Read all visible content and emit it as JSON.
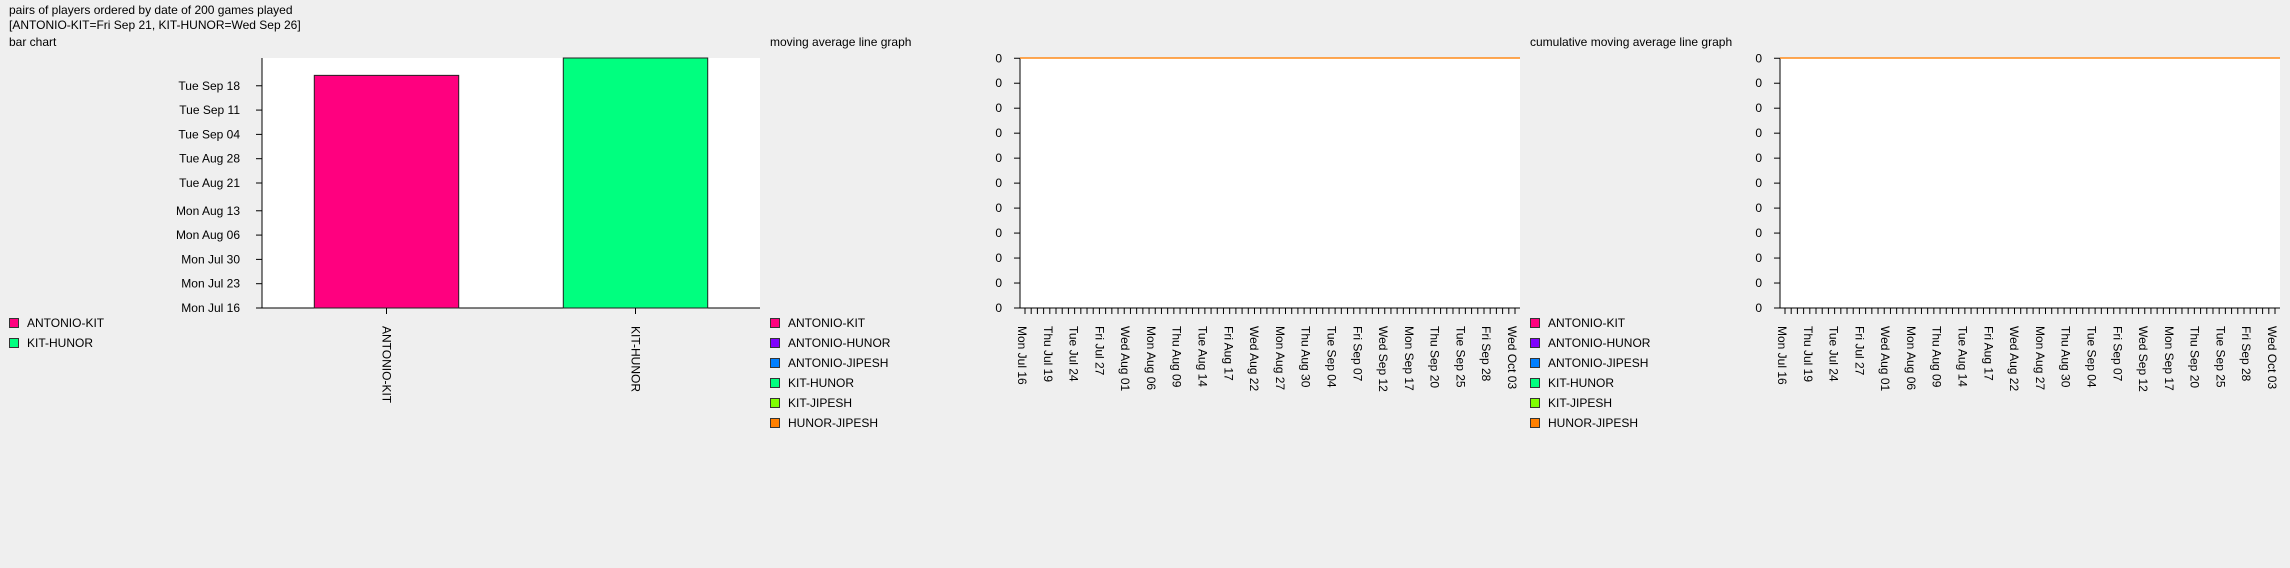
{
  "header": {
    "line1": "pairs of players ordered by date of 200 games played",
    "line2": "[ANTONIO-KIT=Fri Sep 21, KIT-HUNOR=Wed Sep 26]"
  },
  "chart_data": [
    {
      "type": "bar",
      "title": "bar chart",
      "categories": [
        "ANTONIO-KIT",
        "KIT-HUNOR"
      ],
      "values_label": [
        "Fri Sep 21",
        "Wed Sep 26"
      ],
      "values": [
        67,
        72
      ],
      "colors": [
        "#ff007f",
        "#00ff7f"
      ],
      "y_ticks": [
        "Mon Jul 16",
        "Mon Jul 23",
        "Mon Jul 30",
        "Mon Aug 06",
        "Mon Aug 13",
        "Tue Aug 21",
        "Tue Aug 28",
        "Tue Sep 04",
        "Tue Sep 11",
        "Tue Sep 18"
      ],
      "y_tick_values": [
        0,
        7,
        14,
        21,
        28,
        36,
        43,
        50,
        57,
        64
      ],
      "ylim": [
        0,
        72
      ],
      "legend": [
        {
          "label": "ANTONIO-KIT",
          "color": "#ff007f"
        },
        {
          "label": "KIT-HUNOR",
          "color": "#00ff7f"
        }
      ]
    },
    {
      "type": "line",
      "title": "moving average line graph",
      "y_ticks": [
        "0",
        "0",
        "0",
        "0",
        "0",
        "0",
        "0",
        "0",
        "0",
        "0",
        "0"
      ],
      "x_ticks": [
        "Mon Jul 16",
        "Thu Jul 19",
        "Tue Jul 24",
        "Fri Jul 27",
        "Wed Aug 01",
        "Mon Aug 06",
        "Thu Aug 09",
        "Tue Aug 14",
        "Fri Aug 17",
        "Wed Aug 22",
        "Mon Aug 27",
        "Thu Aug 30",
        "Tue Sep 04",
        "Fri Sep 07",
        "Wed Sep 12",
        "Mon Sep 17",
        "Thu Sep 20",
        "Tue Sep 25",
        "Fri Sep 28",
        "Wed Oct 03"
      ],
      "x_minor_count": 80,
      "line_color": "#ff8c1a",
      "legend": [
        {
          "label": "ANTONIO-KIT",
          "color": "#ff007f"
        },
        {
          "label": "ANTONIO-HUNOR",
          "color": "#7f00ff"
        },
        {
          "label": "ANTONIO-JIPESH",
          "color": "#007fff"
        },
        {
          "label": "KIT-HUNOR",
          "color": "#00ff7f"
        },
        {
          "label": "KIT-JIPESH",
          "color": "#7fff00"
        },
        {
          "label": "HUNOR-JIPESH",
          "color": "#ff7f00"
        }
      ]
    },
    {
      "type": "line",
      "title": "cumulative moving average line graph",
      "y_ticks": [
        "0",
        "0",
        "0",
        "0",
        "0",
        "0",
        "0",
        "0",
        "0",
        "0",
        "0"
      ],
      "x_ticks": [
        "Mon Jul 16",
        "Thu Jul 19",
        "Tue Jul 24",
        "Fri Jul 27",
        "Wed Aug 01",
        "Mon Aug 06",
        "Thu Aug 09",
        "Tue Aug 14",
        "Fri Aug 17",
        "Wed Aug 22",
        "Mon Aug 27",
        "Thu Aug 30",
        "Tue Sep 04",
        "Fri Sep 07",
        "Wed Sep 12",
        "Mon Sep 17",
        "Thu Sep 20",
        "Tue Sep 25",
        "Fri Sep 28",
        "Wed Oct 03"
      ],
      "x_minor_count": 80,
      "line_color": "#ff8c1a",
      "legend": [
        {
          "label": "ANTONIO-KIT",
          "color": "#ff007f"
        },
        {
          "label": "ANTONIO-HUNOR",
          "color": "#7f00ff"
        },
        {
          "label": "ANTONIO-JIPESH",
          "color": "#007fff"
        },
        {
          "label": "KIT-HUNOR",
          "color": "#00ff7f"
        },
        {
          "label": "KIT-JIPESH",
          "color": "#7fff00"
        },
        {
          "label": "HUNOR-JIPESH",
          "color": "#ff7f00"
        }
      ]
    }
  ]
}
